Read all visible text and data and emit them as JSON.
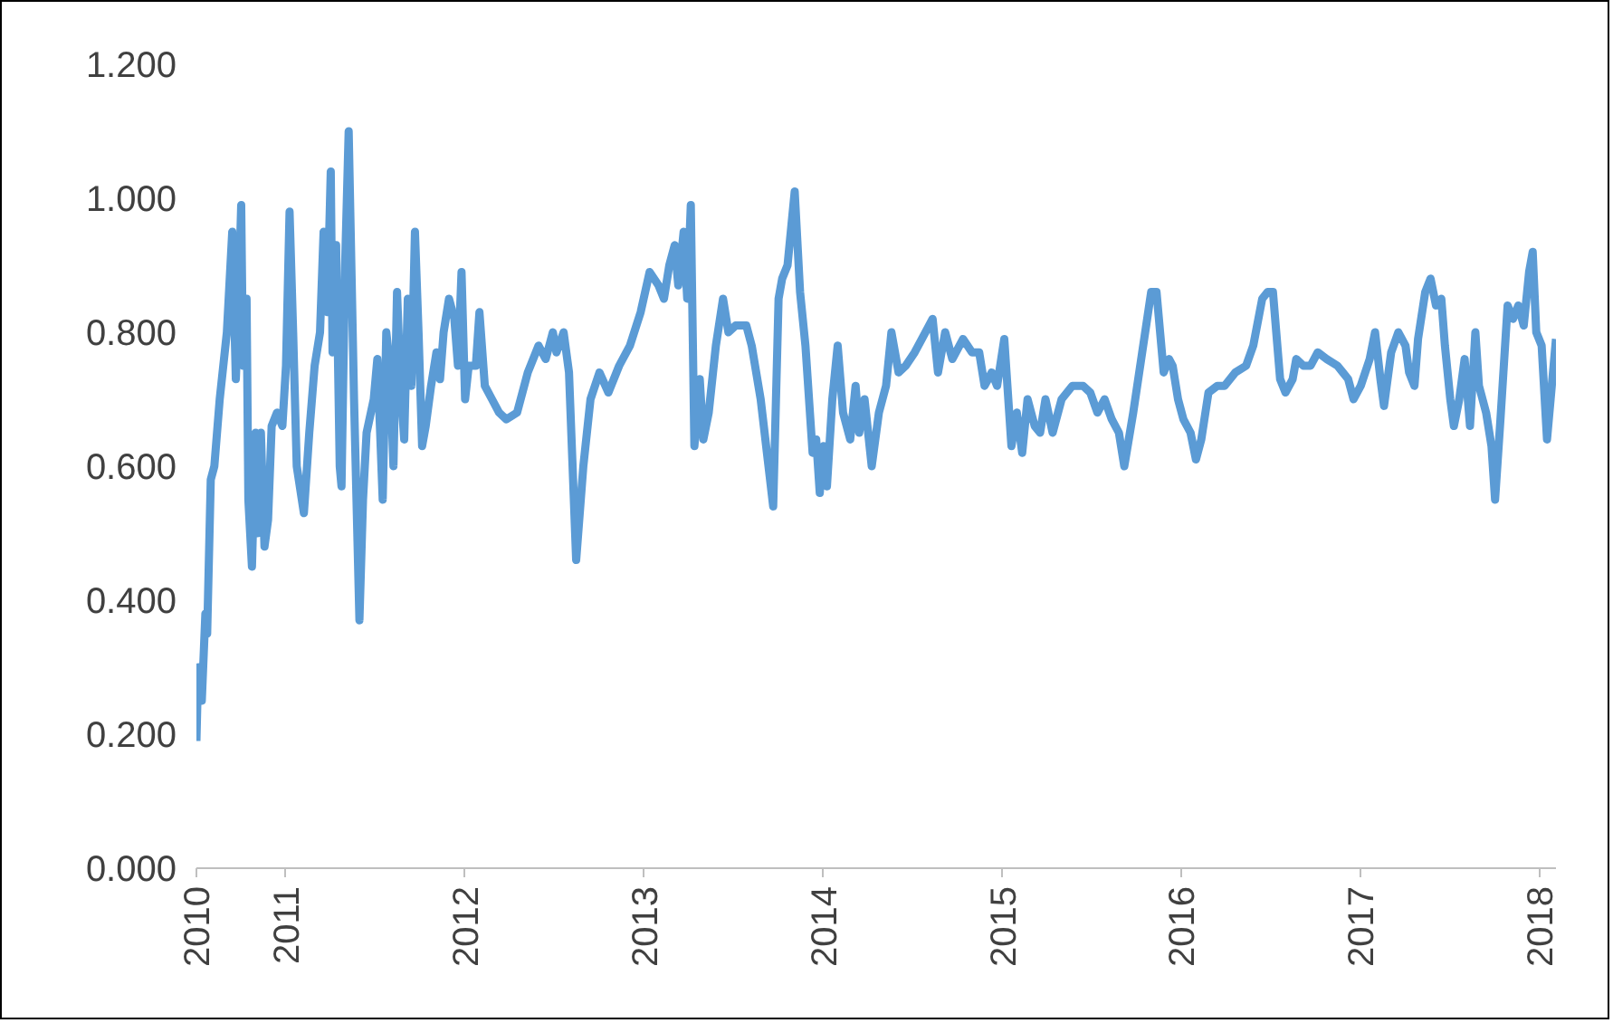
{
  "chart_data": {
    "type": "line",
    "x": [
      2010.5,
      2010.51,
      2010.53,
      2010.55,
      2010.56,
      2010.58,
      2010.6,
      2010.63,
      2010.67,
      2010.69,
      2010.7,
      2010.72,
      2010.73,
      2010.75,
      2010.76,
      2010.78,
      2010.79,
      2010.81,
      2010.83,
      2010.84,
      2010.86,
      2010.88,
      2010.9,
      2010.92,
      2010.95,
      2010.98,
      2011.0,
      2011.02,
      2011.04,
      2011.06,
      2011.1,
      2011.13,
      2011.16,
      2011.19,
      2011.21,
      2011.23,
      2011.25,
      2011.26,
      2011.28,
      2011.3,
      2011.31,
      2011.33,
      2011.35,
      2011.38,
      2011.41,
      2011.43,
      2011.45,
      2011.49,
      2011.51,
      2011.54,
      2011.56,
      2011.58,
      2011.6,
      2011.62,
      2011.64,
      2011.66,
      2011.68,
      2011.7,
      2011.72,
      2011.74,
      2011.76,
      2011.78,
      2011.81,
      2011.84,
      2011.86,
      2011.88,
      2011.91,
      2011.94,
      2011.96,
      2011.98,
      2012.0,
      2012.02,
      2012.06,
      2012.08,
      2012.11,
      2012.15,
      2012.19,
      2012.23,
      2012.29,
      2012.35,
      2012.41,
      2012.45,
      2012.49,
      2012.51,
      2012.55,
      2012.58,
      2012.62,
      2012.66,
      2012.7,
      2012.75,
      2012.8,
      2012.86,
      2012.92,
      2012.98,
      2013.03,
      2013.08,
      2013.11,
      2013.14,
      2013.17,
      2013.19,
      2013.22,
      2013.24,
      2013.26,
      2013.28,
      2013.31,
      2013.33,
      2013.36,
      2013.4,
      2013.44,
      2013.47,
      2013.51,
      2013.57,
      2013.6,
      2013.65,
      2013.72,
      2013.75,
      2013.77,
      2013.8,
      2013.84,
      2013.87,
      2013.9,
      2013.94,
      2013.96,
      2013.98,
      2014.0,
      2014.02,
      2014.05,
      2014.08,
      2014.11,
      2014.15,
      2014.18,
      2014.2,
      2014.23,
      2014.27,
      2014.31,
      2014.35,
      2014.38,
      2014.42,
      2014.46,
      2014.51,
      2014.55,
      2014.61,
      2014.64,
      2014.68,
      2014.72,
      2014.78,
      2014.83,
      2014.87,
      2014.9,
      2014.94,
      2014.97,
      2015.01,
      2015.05,
      2015.08,
      2015.11,
      2015.14,
      2015.18,
      2015.21,
      2015.24,
      2015.28,
      2015.33,
      2015.39,
      2015.45,
      2015.49,
      2015.53,
      2015.57,
      2015.61,
      2015.65,
      2015.68,
      2015.73,
      2015.78,
      2015.83,
      2015.86,
      2015.9,
      2015.93,
      2015.95,
      2015.98,
      2016.01,
      2016.05,
      2016.08,
      2016.11,
      2016.15,
      2016.2,
      2016.24,
      2016.3,
      2016.36,
      2016.4,
      2016.45,
      2016.48,
      2016.51,
      2016.55,
      2016.58,
      2016.62,
      2016.64,
      2016.68,
      2016.72,
      2016.76,
      2016.81,
      2016.87,
      2016.9,
      2016.93,
      2016.96,
      2017.0,
      2017.05,
      2017.08,
      2017.11,
      2017.13,
      2017.17,
      2017.21,
      2017.25,
      2017.27,
      2017.3,
      2017.32,
      2017.36,
      2017.39,
      2017.42,
      2017.45,
      2017.47,
      2017.5,
      2017.52,
      2017.55,
      2017.58,
      2017.61,
      2017.64,
      2017.66,
      2017.7,
      2017.73,
      2017.75,
      2017.78,
      2017.82,
      2017.85,
      2017.88,
      2017.91,
      2017.94,
      2017.96,
      2017.98,
      2018.01,
      2018.04,
      2018.06,
      2018.09
    ],
    "series": [
      {
        "color": "#5b9bd5",
        "values": [
          0.19,
          0.3,
          0.25,
          0.38,
          0.35,
          0.58,
          0.6,
          0.7,
          0.8,
          0.9,
          0.95,
          0.73,
          0.8,
          0.99,
          0.75,
          0.85,
          0.55,
          0.45,
          0.65,
          0.5,
          0.65,
          0.48,
          0.52,
          0.66,
          0.68,
          0.66,
          0.75,
          0.98,
          0.8,
          0.6,
          0.53,
          0.65,
          0.75,
          0.8,
          0.95,
          0.83,
          1.04,
          0.77,
          0.93,
          0.6,
          0.57,
          0.9,
          1.1,
          0.7,
          0.37,
          0.55,
          0.65,
          0.7,
          0.76,
          0.55,
          0.8,
          0.75,
          0.6,
          0.86,
          0.72,
          0.64,
          0.85,
          0.72,
          0.95,
          0.8,
          0.63,
          0.66,
          0.72,
          0.77,
          0.73,
          0.8,
          0.85,
          0.82,
          0.75,
          0.89,
          0.7,
          0.75,
          0.75,
          0.83,
          0.72,
          0.7,
          0.68,
          0.67,
          0.68,
          0.74,
          0.78,
          0.76,
          0.8,
          0.77,
          0.8,
          0.74,
          0.46,
          0.6,
          0.7,
          0.74,
          0.71,
          0.75,
          0.78,
          0.83,
          0.89,
          0.87,
          0.85,
          0.9,
          0.93,
          0.87,
          0.95,
          0.85,
          0.99,
          0.63,
          0.73,
          0.64,
          0.68,
          0.78,
          0.85,
          0.8,
          0.81,
          0.81,
          0.78,
          0.7,
          0.54,
          0.85,
          0.88,
          0.9,
          1.01,
          0.86,
          0.78,
          0.62,
          0.64,
          0.56,
          0.63,
          0.57,
          0.7,
          0.78,
          0.68,
          0.64,
          0.72,
          0.65,
          0.7,
          0.6,
          0.68,
          0.72,
          0.8,
          0.74,
          0.75,
          0.77,
          0.79,
          0.82,
          0.74,
          0.8,
          0.76,
          0.79,
          0.77,
          0.77,
          0.72,
          0.74,
          0.72,
          0.79,
          0.63,
          0.68,
          0.62,
          0.7,
          0.66,
          0.65,
          0.7,
          0.65,
          0.7,
          0.72,
          0.72,
          0.71,
          0.68,
          0.7,
          0.67,
          0.65,
          0.6,
          0.68,
          0.77,
          0.86,
          0.86,
          0.74,
          0.76,
          0.75,
          0.7,
          0.67,
          0.65,
          0.61,
          0.64,
          0.71,
          0.72,
          0.72,
          0.74,
          0.75,
          0.78,
          0.85,
          0.86,
          0.86,
          0.73,
          0.71,
          0.73,
          0.76,
          0.75,
          0.75,
          0.77,
          0.76,
          0.75,
          0.74,
          0.73,
          0.7,
          0.72,
          0.76,
          0.8,
          0.73,
          0.69,
          0.77,
          0.8,
          0.78,
          0.74,
          0.72,
          0.79,
          0.86,
          0.88,
          0.84,
          0.85,
          0.78,
          0.7,
          0.66,
          0.7,
          0.76,
          0.66,
          0.8,
          0.72,
          0.68,
          0.63,
          0.55,
          0.67,
          0.84,
          0.82,
          0.84,
          0.81,
          0.89,
          0.92,
          0.8,
          0.78,
          0.64,
          0.7,
          0.79
        ]
      }
    ],
    "xlim": [
      2010.5,
      2018.09
    ],
    "xticks": [
      {
        "value": 2010.5,
        "label": "2010"
      },
      2011,
      2012,
      2013,
      2014,
      2015,
      2016,
      2017,
      2018
    ],
    "ylim": [
      0,
      1.2
    ],
    "yticks": [
      {
        "value": 0,
        "label": "0.000"
      },
      {
        "value": 0.2,
        "label": "0.200"
      },
      {
        "value": 0.4,
        "label": "0.400"
      },
      {
        "value": 0.6,
        "label": "0.600"
      },
      {
        "value": 0.8,
        "label": "0.800"
      },
      {
        "value": 1.0,
        "label": "1.000"
      },
      {
        "value": 1.2,
        "label": "1.200"
      }
    ],
    "grid": false,
    "marker": "none",
    "line_style": "solid"
  }
}
